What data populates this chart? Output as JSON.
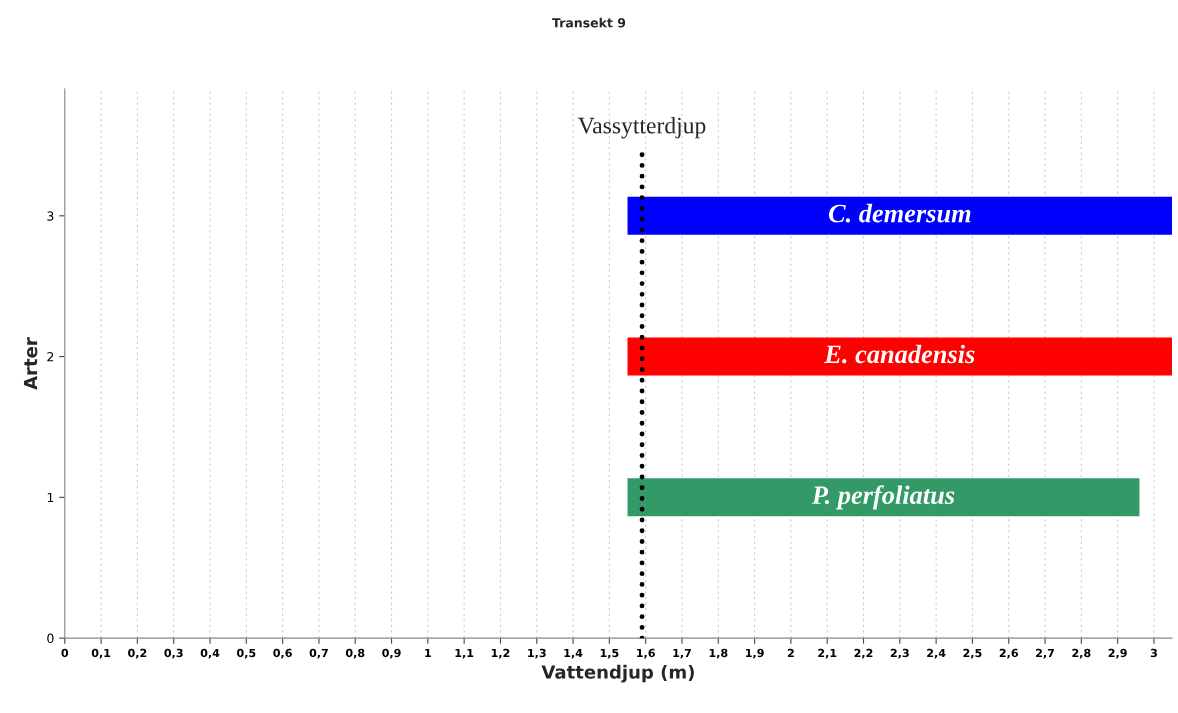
{
  "chart_data": {
    "type": "bar",
    "orientation": "horizontal",
    "title": "Transekt 9",
    "xlabel": "Vattendjup (m)",
    "ylabel": "Arter",
    "categories": [
      "3",
      "2",
      "1",
      "0"
    ],
    "series": [
      {
        "name": "C. demersum",
        "color": "#0000ff",
        "values": [
          1.5,
          null,
          null,
          null
        ],
        "base": [
          1.55,
          null,
          null,
          null
        ]
      },
      {
        "name": "E. canadensis",
        "color": "#ff0000",
        "values": [
          null,
          1.5,
          null,
          null
        ],
        "base": [
          null,
          1.55,
          null,
          null
        ]
      },
      {
        "name": "P. perfoliatus",
        "color": "#339966",
        "values": [
          null,
          null,
          1.41,
          null
        ],
        "base": [
          null,
          null,
          1.55,
          null
        ]
      }
    ],
    "xlim": [
      0,
      3.05
    ],
    "xticks": [
      0,
      {
        "value": 0.1,
        "label": "0,1"
      },
      {
        "value": 0.2,
        "label": "0,2"
      },
      {
        "value": 0.3,
        "label": "0,3"
      },
      {
        "value": 0.4,
        "label": "0,4"
      },
      {
        "value": 0.5,
        "label": "0,5"
      },
      {
        "value": 0.6,
        "label": "0,6"
      },
      {
        "value": 0.7,
        "label": "0,7"
      },
      {
        "value": 0.8,
        "label": "0,8"
      },
      {
        "value": 0.9,
        "label": "0,9"
      },
      1,
      {
        "value": 1.1,
        "label": "1,1"
      },
      {
        "value": 1.2,
        "label": "1,2"
      },
      {
        "value": 1.3,
        "label": "1,3"
      },
      {
        "value": 1.4,
        "label": "1,4"
      },
      {
        "value": 1.5,
        "label": "1,5"
      },
      {
        "value": 1.6,
        "label": "1,6"
      },
      {
        "value": 1.7,
        "label": "1,7"
      },
      {
        "value": 1.8,
        "label": "1,8"
      },
      {
        "value": 1.9,
        "label": "1,9"
      },
      2,
      {
        "value": 2.1,
        "label": "2,1"
      },
      {
        "value": 2.2,
        "label": "2,2"
      },
      {
        "value": 2.3,
        "label": "2,3"
      },
      {
        "value": 2.4,
        "label": "2,4"
      },
      {
        "value": 2.5,
        "label": "2,5"
      },
      {
        "value": 2.6,
        "label": "2,6"
      },
      {
        "value": 2.7,
        "label": "2,7"
      },
      {
        "value": 2.8,
        "label": "2,8"
      },
      {
        "value": 2.9,
        "label": "2,9"
      },
      3
    ],
    "ref_lines": [
      {
        "axis": "x",
        "value": 1.59,
        "label": "Vassytterdjup",
        "color": "#000000",
        "line_style": "dotted"
      }
    ],
    "grid": "x",
    "legend": false
  }
}
